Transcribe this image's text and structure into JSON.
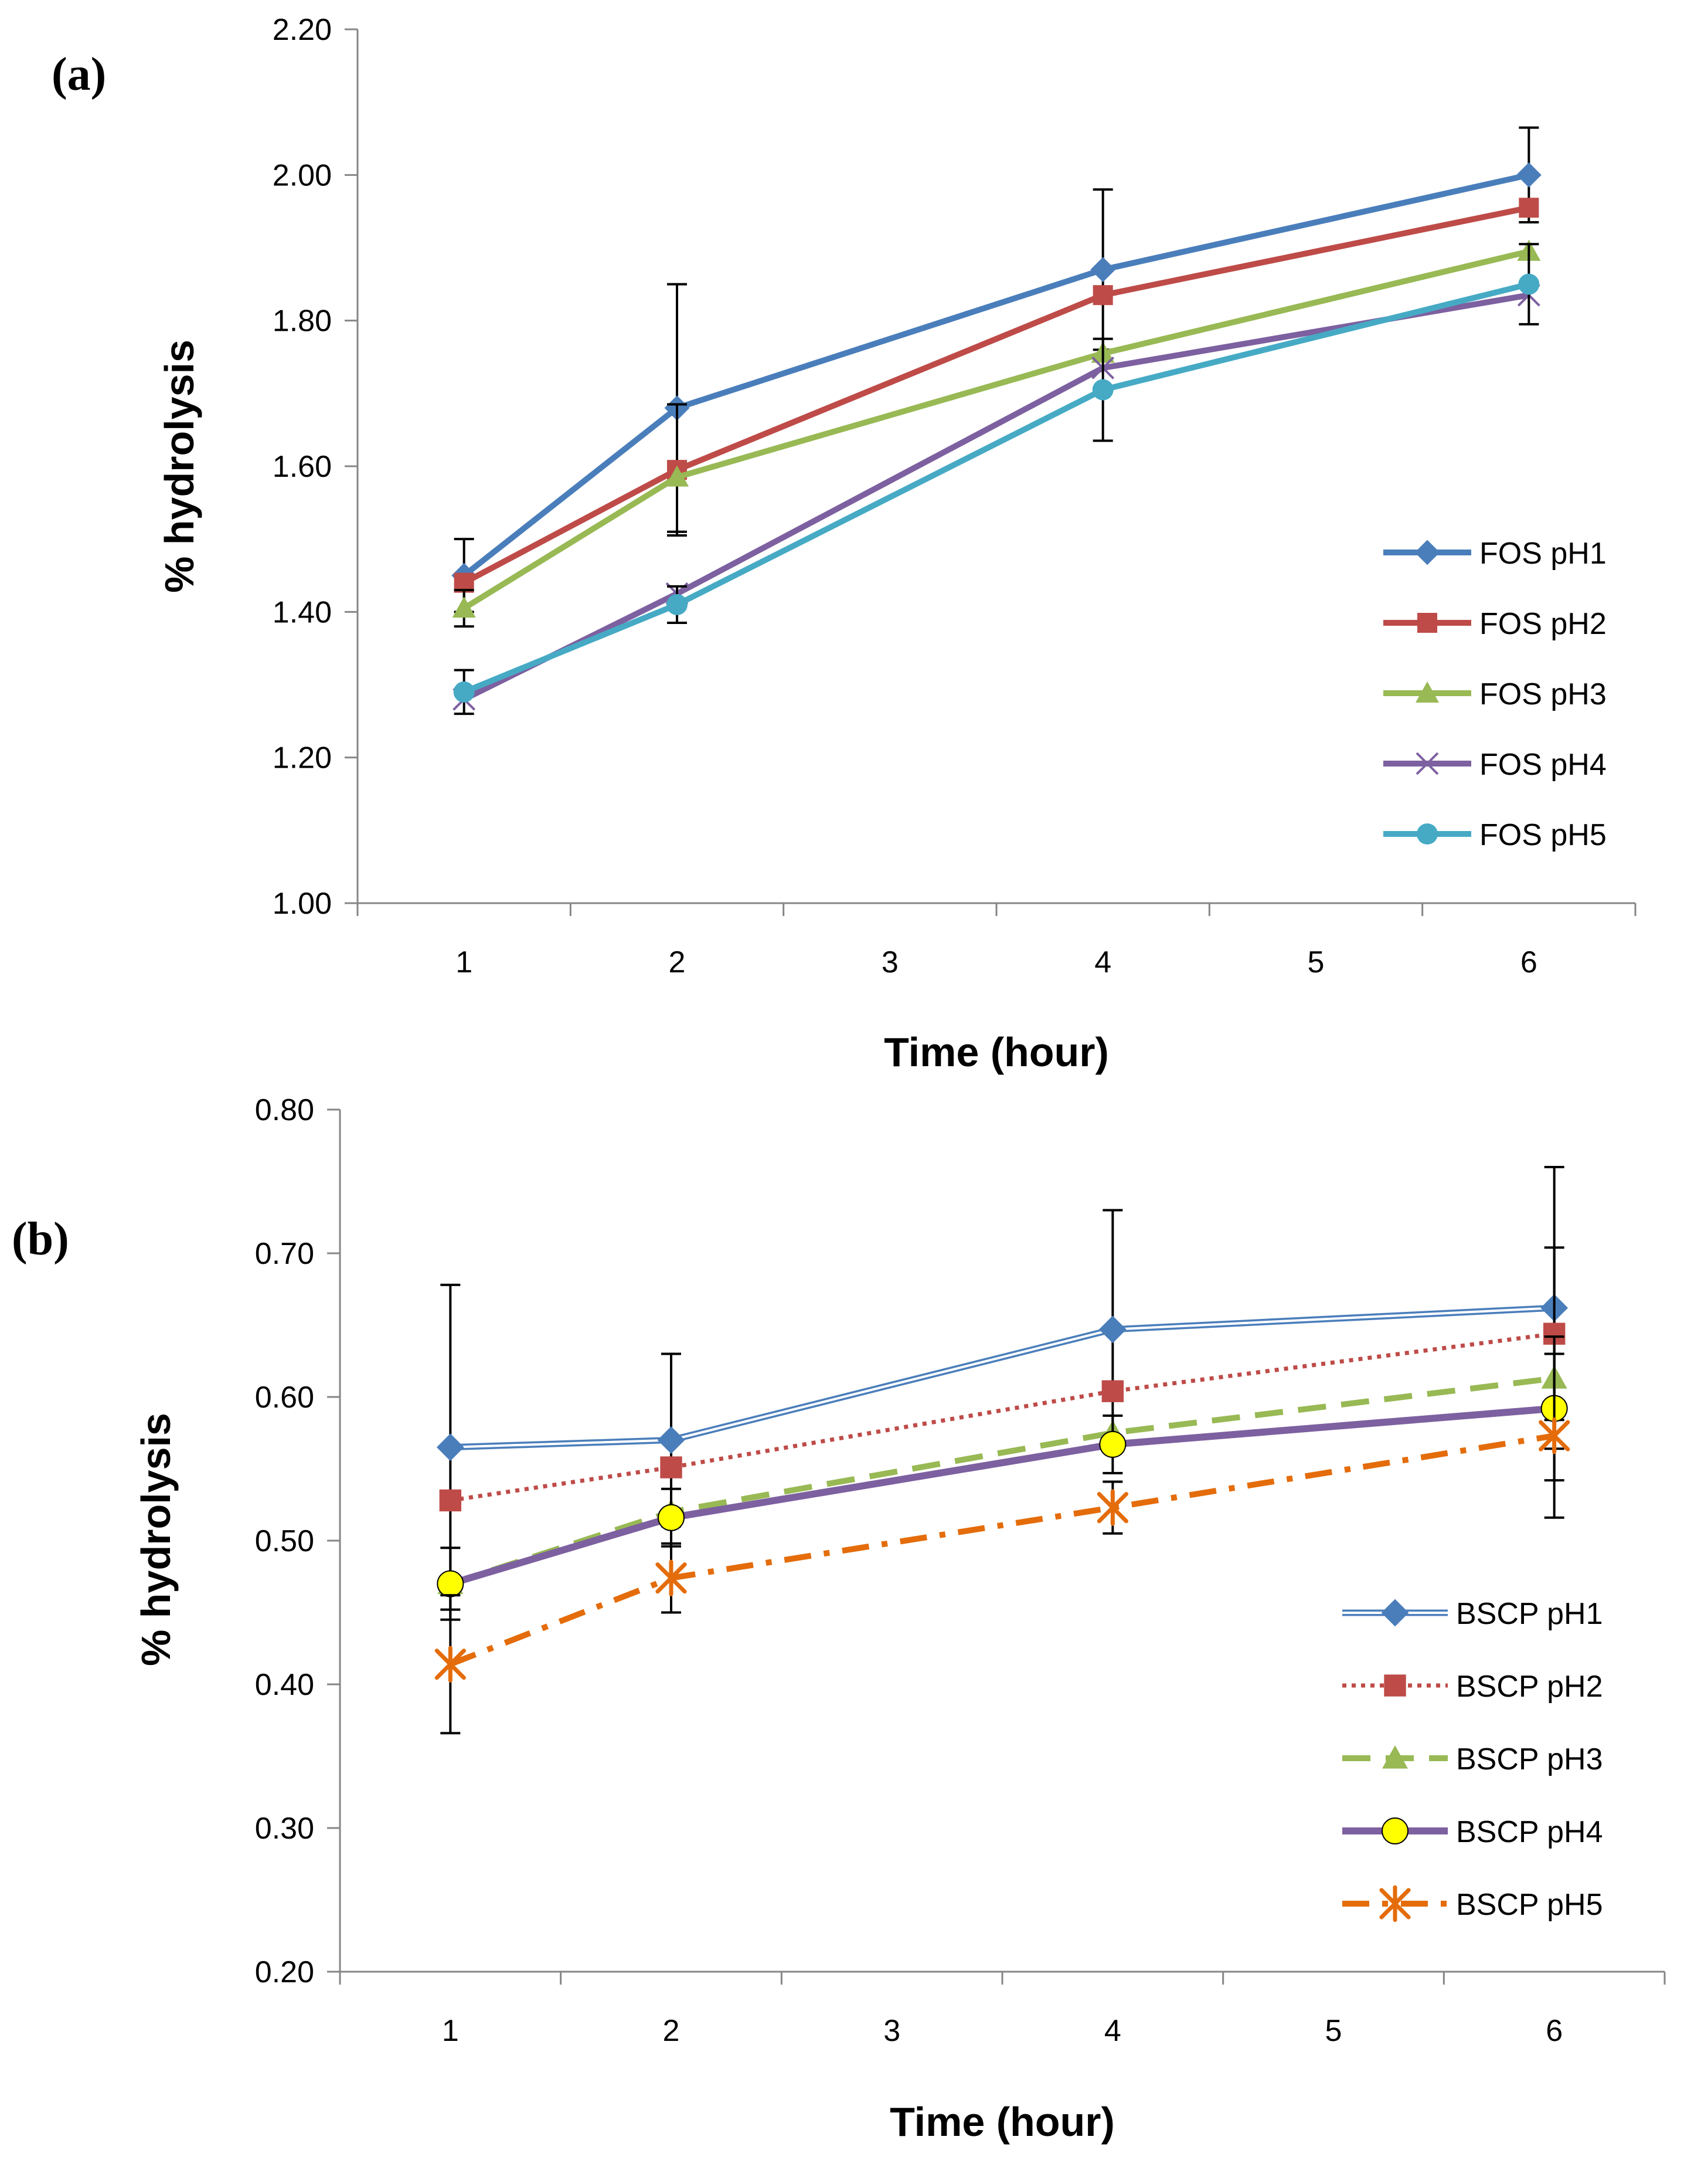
{
  "chart_data": [
    {
      "panel_label": "(a)",
      "type": "line",
      "xlabel": "Time (hour)",
      "ylabel": "% hydrolysis",
      "xlim": [
        0.5,
        6.5
      ],
      "ylim": [
        1.0,
        2.2
      ],
      "x_ticks": [
        1,
        2,
        3,
        4,
        5,
        6
      ],
      "y_ticks": [
        "1.00",
        "1.20",
        "1.40",
        "1.60",
        "1.80",
        "2.00",
        "2.20"
      ],
      "grid": false,
      "legend": "right",
      "x": [
        1,
        2,
        4,
        6
      ],
      "series": [
        {
          "name": "FOS pH1",
          "color": "#4a7ebb",
          "marker": "diamond",
          "line": "solid",
          "values": [
            1.45,
            1.68,
            1.87,
            2.0
          ],
          "err": [
            0.05,
            0.17,
            0.11,
            0.065
          ]
        },
        {
          "name": "FOS pH2",
          "color": "#be4b48",
          "marker": "square",
          "line": "solid",
          "values": [
            1.44,
            1.595,
            1.835,
            1.955
          ],
          "err": [
            0.0,
            0.09,
            0.0,
            0.0
          ]
        },
        {
          "name": "FOS pH3",
          "color": "#98b954",
          "marker": "triangle",
          "line": "solid",
          "values": [
            1.405,
            1.585,
            1.755,
            1.895
          ],
          "err": [
            0.025,
            0.0,
            0.0,
            0.0
          ]
        },
        {
          "name": "FOS pH4",
          "color": "#7d60a0",
          "marker": "x",
          "line": "solid",
          "values": [
            1.28,
            1.425,
            1.735,
            1.835
          ],
          "err": [
            0.0,
            0.0,
            0.0,
            0.0
          ]
        },
        {
          "name": "FOS pH5",
          "color": "#46aac5",
          "marker": "circle",
          "line": "solid",
          "values": [
            1.29,
            1.41,
            1.705,
            1.85
          ],
          "err": [
            0.03,
            0.025,
            0.07,
            0.055
          ]
        }
      ]
    },
    {
      "panel_label": "(b)",
      "type": "line",
      "xlabel": "Time (hour)",
      "ylabel": "% hydrolysis",
      "xlim": [
        0.5,
        6.5
      ],
      "ylim": [
        0.2,
        0.8
      ],
      "x_ticks": [
        1,
        2,
        3,
        4,
        5,
        6
      ],
      "y_ticks": [
        "0.20",
        "0.30",
        "0.40",
        "0.50",
        "0.60",
        "0.70",
        "0.80"
      ],
      "grid": false,
      "legend": "right",
      "x": [
        1,
        2,
        4,
        6
      ],
      "series": [
        {
          "name": "BSCP pH1",
          "color": "#4a7ebb",
          "marker": "diamond",
          "line": "double",
          "values": [
            0.565,
            0.57,
            0.647,
            0.662
          ],
          "err": [
            0.113,
            0.06,
            0.083,
            0.098
          ]
        },
        {
          "name": "BSCP pH2",
          "color": "#be4b48",
          "marker": "square",
          "line": "dotted",
          "values": [
            0.528,
            0.551,
            0.604,
            0.644
          ],
          "err": [
            0.0,
            0.0,
            0.0,
            0.06
          ]
        },
        {
          "name": "BSCP pH3",
          "color": "#98b954",
          "marker": "triangle",
          "line": "dashed",
          "values": [
            0.47,
            0.52,
            0.575,
            0.613
          ],
          "err": [
            0.0,
            0.0,
            0.0,
            0.0
          ]
        },
        {
          "name": "BSCP pH4",
          "color": "#7d60a0",
          "marker": "circle-yellow",
          "line": "thick",
          "values": [
            0.47,
            0.516,
            0.567,
            0.592
          ],
          "err": [
            0.025,
            0.02,
            0.02,
            0.05
          ]
        },
        {
          "name": "BSCP pH5",
          "color": "#e46c0a",
          "marker": "asterisk",
          "line": "dashdot",
          "values": [
            0.414,
            0.474,
            0.523,
            0.573
          ],
          "err": [
            0.048,
            0.024,
            0.018,
            0.057
          ]
        }
      ]
    }
  ]
}
